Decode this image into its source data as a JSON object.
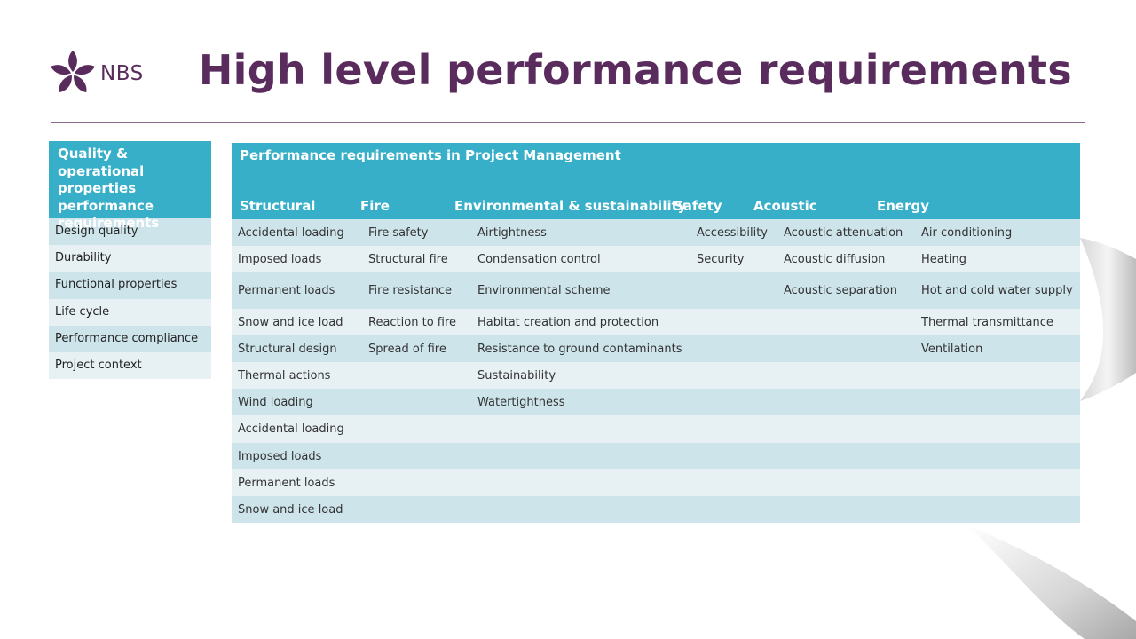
{
  "header": {
    "logo_text": "NBS",
    "title": "High level performance requirements"
  },
  "left_panel": {
    "heading": "Quality & operational properties performance requirements",
    "items": [
      "Design quality",
      "Durability",
      "Functional properties",
      "Life cycle",
      "Performance compliance",
      "Project context"
    ]
  },
  "table": {
    "title": "Performance requirements in Project Management",
    "columns": [
      "Structural",
      "Fire",
      "Environmental & sustainability",
      "Safety",
      "Acoustic",
      "Energy"
    ],
    "rows": [
      [
        "Accidental loading",
        "Fire safety",
        "Airtightness",
        "Accessibility",
        "Acoustic attenuation",
        "Air conditioning"
      ],
      [
        "Imposed loads",
        "Structural fire",
        "Condensation control",
        "Security",
        "Acoustic diffusion",
        "Heating"
      ],
      [
        "Permanent loads",
        "Fire resistance",
        "Environmental scheme",
        "",
        "Acoustic separation",
        "Hot and cold water supply"
      ],
      [
        "Snow and ice load",
        "Reaction to fire",
        "Habitat creation and protection",
        "",
        "",
        "Thermal transmittance"
      ],
      [
        "Structural design",
        "Spread of fire",
        "Resistance to ground contaminants",
        "",
        "",
        "Ventilation"
      ],
      [
        "Thermal actions",
        "",
        "Sustainability",
        "",
        "",
        ""
      ],
      [
        "Wind loading",
        "",
        "Watertightness",
        "",
        "",
        ""
      ],
      [
        "Accidental loading",
        "",
        "",
        "",
        "",
        ""
      ],
      [
        "Imposed loads",
        "",
        "",
        "",
        "",
        ""
      ],
      [
        "Permanent loads",
        "",
        "",
        "",
        "",
        ""
      ],
      [
        "Snow and ice load",
        "",
        "",
        "",
        "",
        ""
      ]
    ]
  },
  "colors": {
    "brand_purple": "#5a2c5e",
    "header_teal": "#38afc9",
    "row_dark": "#cde4eb",
    "row_light": "#e7f1f4"
  }
}
